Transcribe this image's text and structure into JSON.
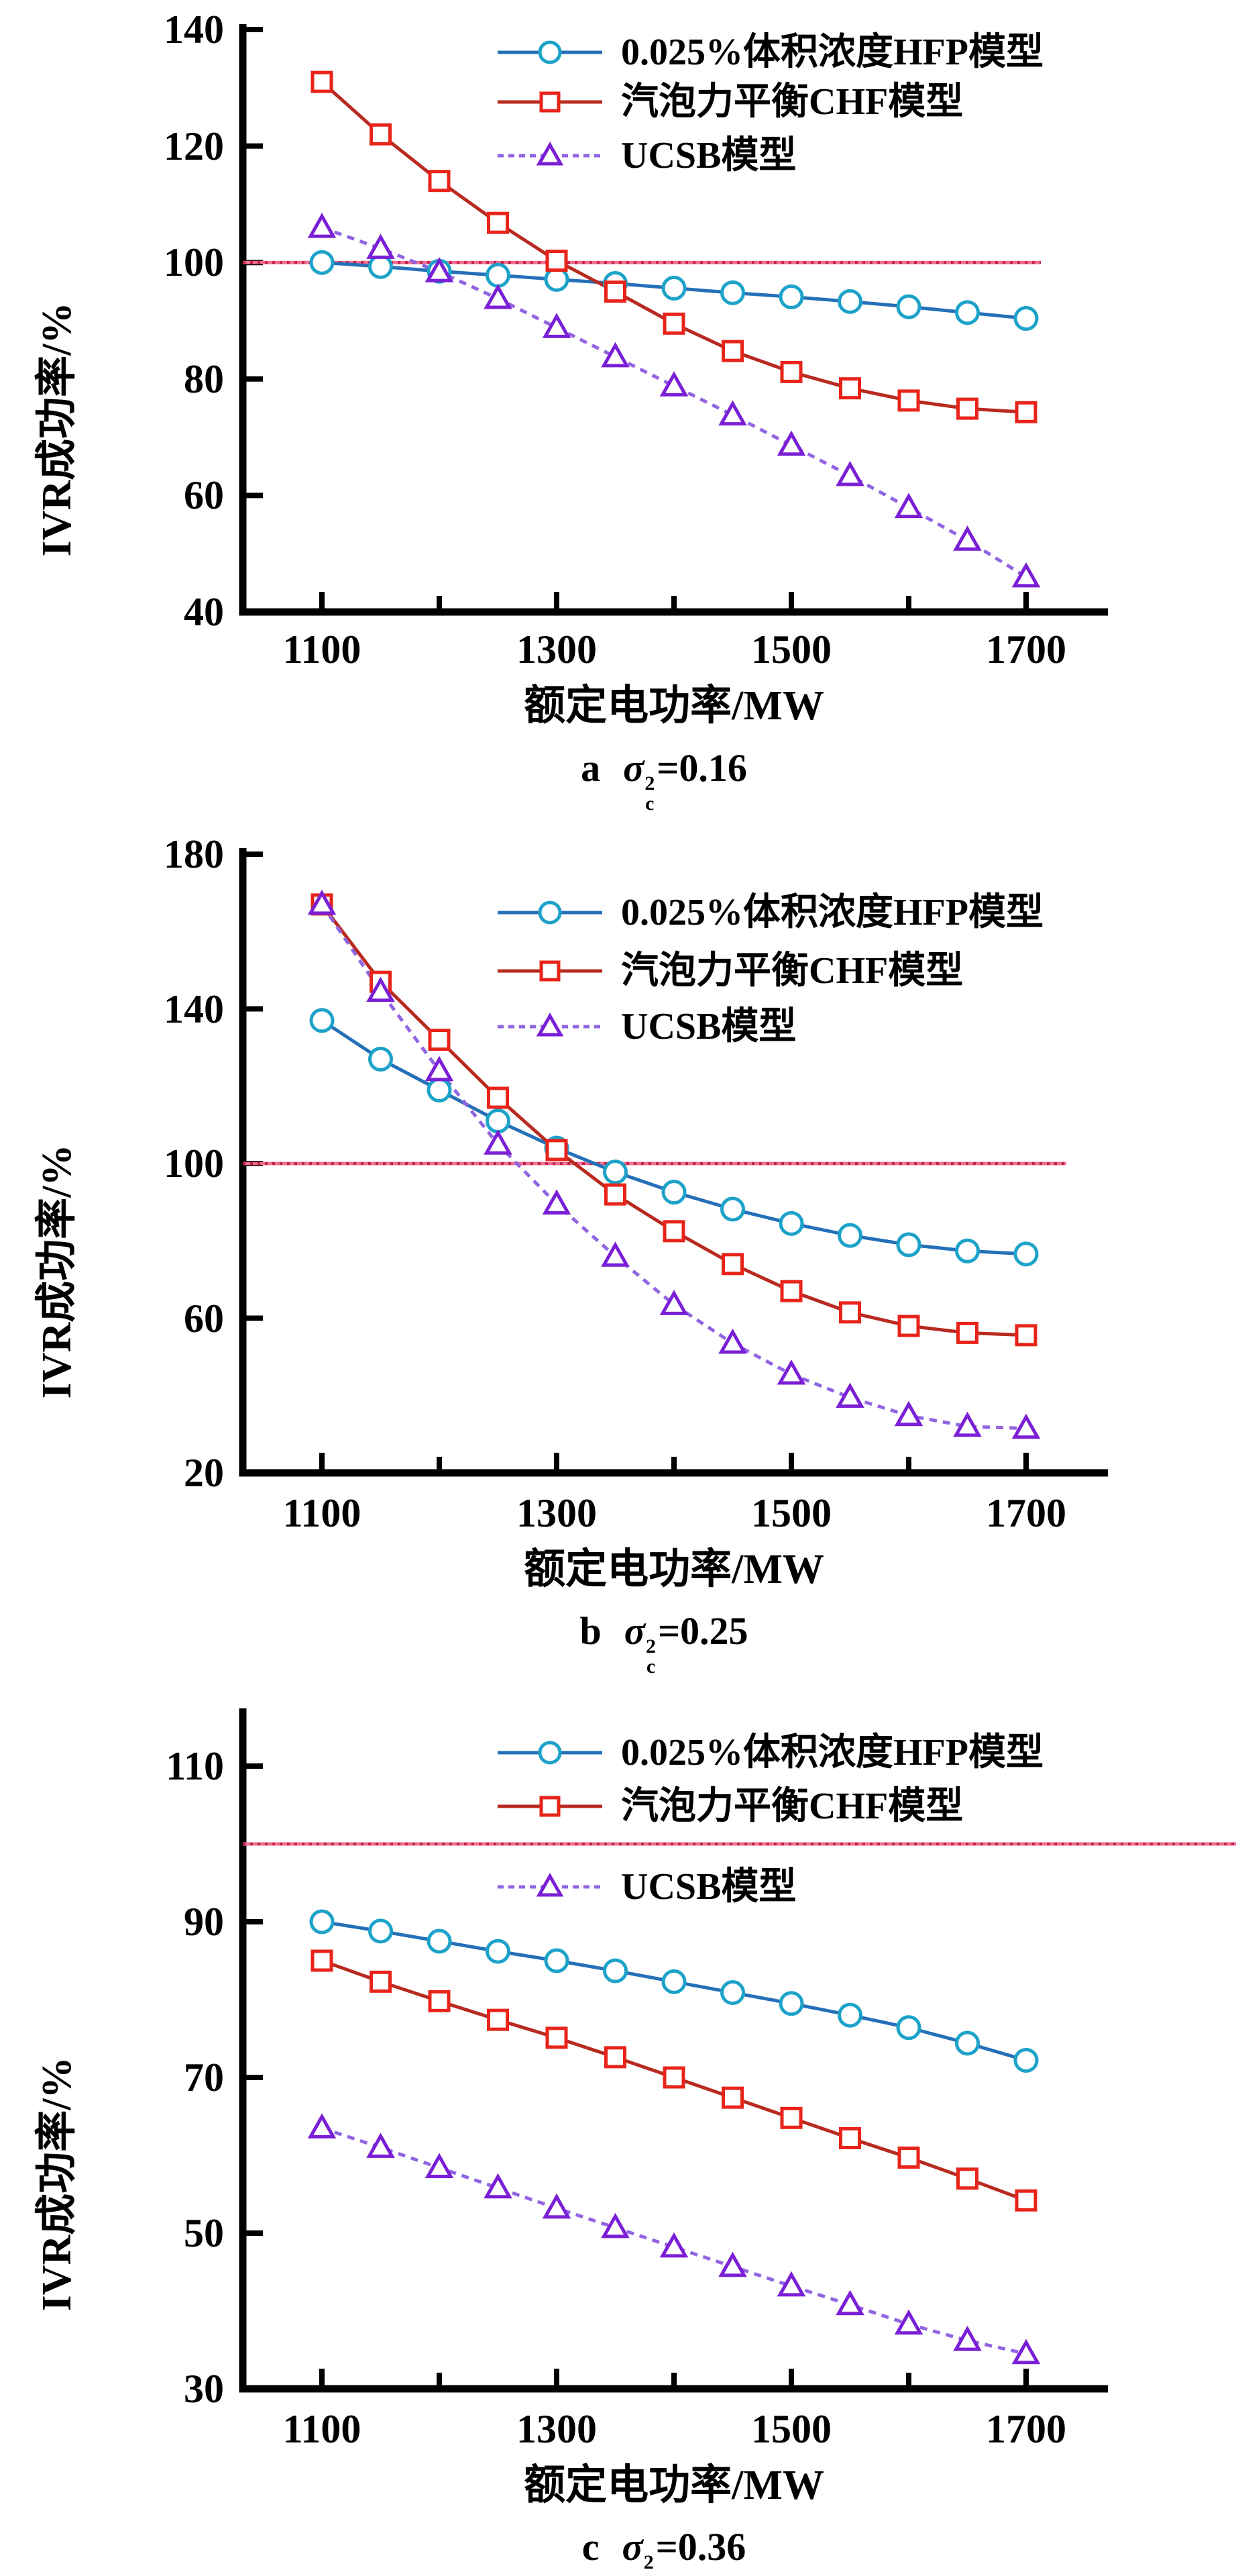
{
  "figure": {
    "background": "#ffffff",
    "colors": {
      "axis": "#000000",
      "hfp_line": "#2470b8",
      "hfp_marker": "#1da2c9",
      "chf_line": "#b82a20",
      "chf_marker": "#e8241a",
      "ucsb_line": "#9165e2",
      "ucsb_marker": "#7a1fd6",
      "ref_line_base": "#ef6e92",
      "ref_line_dots": "#c21f48"
    }
  },
  "chart_data": [
    {
      "id": "a",
      "type": "line",
      "caption": {
        "letter": "a",
        "sigma": "σ",
        "sup": "2",
        "sub": "c",
        "equals": "=0.16"
      },
      "xlabel": "额定电功率/MW",
      "ylabel": "IVR成功率/%",
      "ylim": [
        40,
        140
      ],
      "yticks": [
        140,
        120,
        100,
        80,
        60,
        40
      ],
      "xticks": [
        1100,
        1300,
        1500,
        1700
      ],
      "xminor_ticks": [
        1200,
        1400,
        1600
      ],
      "ref_line_y": 100,
      "grid": false,
      "legend_position": "top-right-inside",
      "x": [
        1100,
        1150,
        1200,
        1250,
        1300,
        1350,
        1400,
        1450,
        1500,
        1550,
        1600,
        1650,
        1700
      ],
      "series": [
        {
          "name": "0.025%体积浓度HFP模型",
          "marker": "circle",
          "line": "solid",
          "values": [
            100,
            99.3,
            98.5,
            97.8,
            97.1,
            96.4,
            95.6,
            94.8,
            94.1,
            93.3,
            92.4,
            91.4,
            90.4
          ]
        },
        {
          "name": "汽泡力平衡CHF模型",
          "marker": "square",
          "line": "solid",
          "values": [
            131,
            122,
            114,
            106.8,
            100.3,
            95,
            89.5,
            84.8,
            81.2,
            78.4,
            76.3,
            74.9,
            74.3
          ]
        },
        {
          "name": "UCSB模型",
          "marker": "triangle",
          "line": "dashed",
          "values": [
            106,
            102.4,
            98.4,
            93.8,
            88.8,
            83.8,
            78.8,
            73.8,
            68.6,
            63.4,
            57.9,
            52.3,
            46
          ]
        }
      ]
    },
    {
      "id": "b",
      "type": "line",
      "caption": {
        "letter": "b",
        "sigma": "σ",
        "sup": "2",
        "sub": "c",
        "equals": "=0.25"
      },
      "xlabel": "额定电功率/MW",
      "ylabel": "IVR成功率/%",
      "ylim": [
        20,
        180
      ],
      "yticks": [
        180,
        140,
        100,
        60,
        20
      ],
      "xticks": [
        1100,
        1300,
        1500,
        1700
      ],
      "xminor_ticks": [
        1200,
        1400,
        1600
      ],
      "ref_line_y": 100,
      "grid": false,
      "legend_position": "top-right-inside",
      "x": [
        1100,
        1150,
        1200,
        1250,
        1300,
        1350,
        1400,
        1450,
        1500,
        1550,
        1600,
        1650,
        1700
      ],
      "series": [
        {
          "name": "0.025%体积浓度HFP模型",
          "marker": "circle",
          "line": "solid",
          "values": [
            137,
            127,
            119,
            111,
            104,
            97.8,
            92.6,
            88.2,
            84.5,
            81.4,
            79,
            77.4,
            76.6
          ]
        },
        {
          "name": "汽泡力平衡CHF模型",
          "marker": "square",
          "line": "solid",
          "values": [
            167,
            147,
            132,
            117,
            103.5,
            92,
            82.5,
            74,
            67,
            61.5,
            58,
            56.2,
            55.6
          ]
        },
        {
          "name": "UCSB模型",
          "marker": "triangle",
          "line": "dashed",
          "values": [
            167,
            144.5,
            124,
            105,
            89.5,
            76,
            63.5,
            53.5,
            45.5,
            39.5,
            34.8,
            32,
            31.5
          ]
        }
      ]
    },
    {
      "id": "c",
      "type": "line",
      "caption": {
        "letter": "c",
        "sigma": "σ",
        "sup": "2",
        "sub": "c",
        "equals": "=0.36"
      },
      "xlabel": "额定电功率/MW",
      "ylabel": "IVR成功率/%",
      "ylim": [
        30,
        110
      ],
      "yticks": [
        110,
        90,
        70,
        50,
        30
      ],
      "xticks": [
        1100,
        1300,
        1500,
        1700
      ],
      "xminor_ticks": [
        1200,
        1400,
        1600
      ],
      "ref_line_y": 100,
      "grid": false,
      "legend_position": "top-right-inside",
      "x": [
        1100,
        1150,
        1200,
        1250,
        1300,
        1350,
        1400,
        1450,
        1500,
        1550,
        1600,
        1650,
        1700
      ],
      "series": [
        {
          "name": "0.025%体积浓度HFP模型",
          "marker": "circle",
          "line": "solid",
          "values": [
            90,
            88.8,
            87.5,
            86.2,
            85,
            83.7,
            82.3,
            80.9,
            79.5,
            78,
            76.4,
            74.4,
            72.2
          ]
        },
        {
          "name": "汽泡力平衡CHF模型",
          "marker": "square",
          "line": "solid",
          "values": [
            85,
            82.3,
            79.8,
            77.4,
            75.1,
            72.6,
            70,
            67.4,
            64.8,
            62.2,
            59.7,
            57,
            54.2
          ]
        },
        {
          "name": "UCSB模型",
          "marker": "triangle",
          "line": "dashed",
          "values": [
            63.5,
            61,
            58.4,
            55.8,
            53.2,
            50.7,
            48.2,
            45.7,
            43.2,
            40.8,
            38.3,
            36.2,
            34.5
          ]
        }
      ]
    }
  ]
}
